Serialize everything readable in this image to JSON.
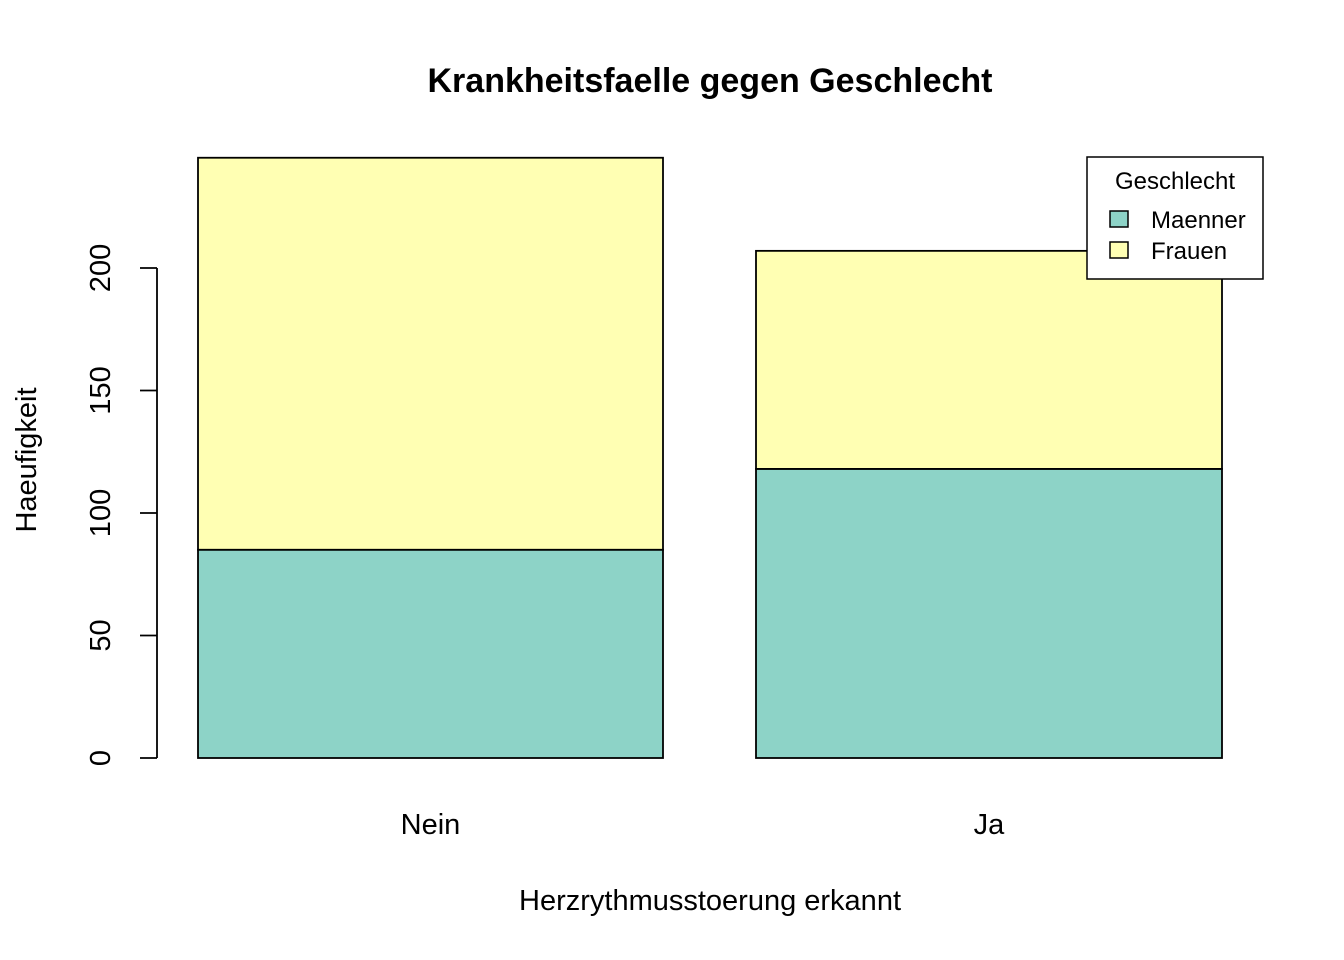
{
  "chart_data": {
    "type": "bar",
    "stacked": true,
    "title": "Krankheitsfaelle gegen Geschlecht",
    "xlabel": "Herzrythmusstoerung erkannt",
    "ylabel": "Haeufigkeit",
    "categories": [
      "Nein",
      "Ja"
    ],
    "series": [
      {
        "name": "Maenner",
        "values": [
          85,
          118
        ],
        "color": "#8DD3C7"
      },
      {
        "name": "Frauen",
        "values": [
          160,
          89
        ],
        "color": "#FFFFB3"
      }
    ],
    "yticks": [
      0,
      50,
      100,
      150,
      200
    ],
    "ylim": [
      0,
      245
    ],
    "grid": false,
    "legend": {
      "title": "Geschlecht",
      "position": "top-right"
    }
  }
}
